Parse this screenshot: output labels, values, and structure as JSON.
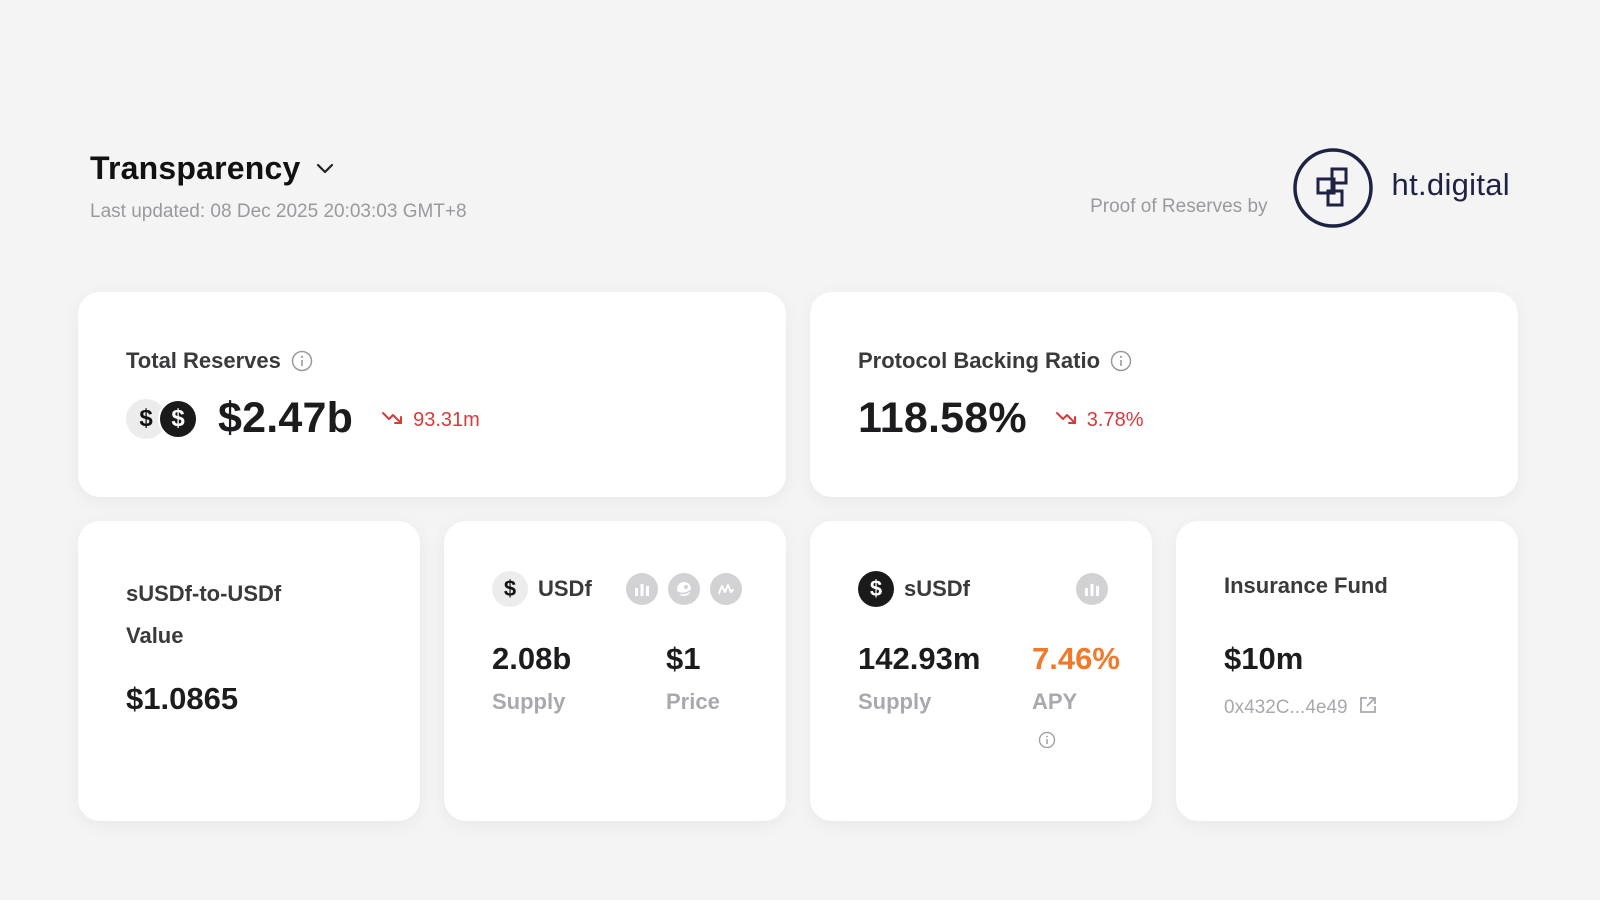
{
  "header": {
    "title": "Transparency",
    "last_updated": "Last updated: 08 Dec 2025 20:03:03 GMT+8",
    "proof_label": "Proof of Reserves by",
    "brand_name": "ht.digital"
  },
  "total_reserves": {
    "label": "Total Reserves",
    "value": "$2.47b",
    "change": "93.31m",
    "change_direction": "down",
    "coin_symbol": "$"
  },
  "backing_ratio": {
    "label": "Protocol Backing Ratio",
    "value": "118.58%",
    "change": "3.78%",
    "change_direction": "down"
  },
  "susdf_to_usdf": {
    "label": "sUSDf-to-USDf Value",
    "value": "$1.0865"
  },
  "usdf": {
    "name": "USDf",
    "coin_symbol": "$",
    "supply_value": "2.08b",
    "supply_label": "Supply",
    "price_value": "$1",
    "price_label": "Price",
    "links": [
      "bar-chart-icon",
      "gecko-icon",
      "coinmarketcap-icon"
    ]
  },
  "susdf": {
    "name": "sUSDf",
    "coin_symbol": "$",
    "supply_value": "142.93m",
    "supply_label": "Supply",
    "apy_value": "7.46%",
    "apy_label": "APY",
    "links": [
      "bar-chart-icon"
    ]
  },
  "insurance_fund": {
    "label": "Insurance Fund",
    "value": "$10m",
    "address": "0x432C...4e49"
  },
  "colors": {
    "background": "#f4f4f5",
    "card": "#ffffff",
    "negative": "#d63b3b",
    "apy_accent": "#f07a2a",
    "brand_navy": "#1e2243"
  }
}
